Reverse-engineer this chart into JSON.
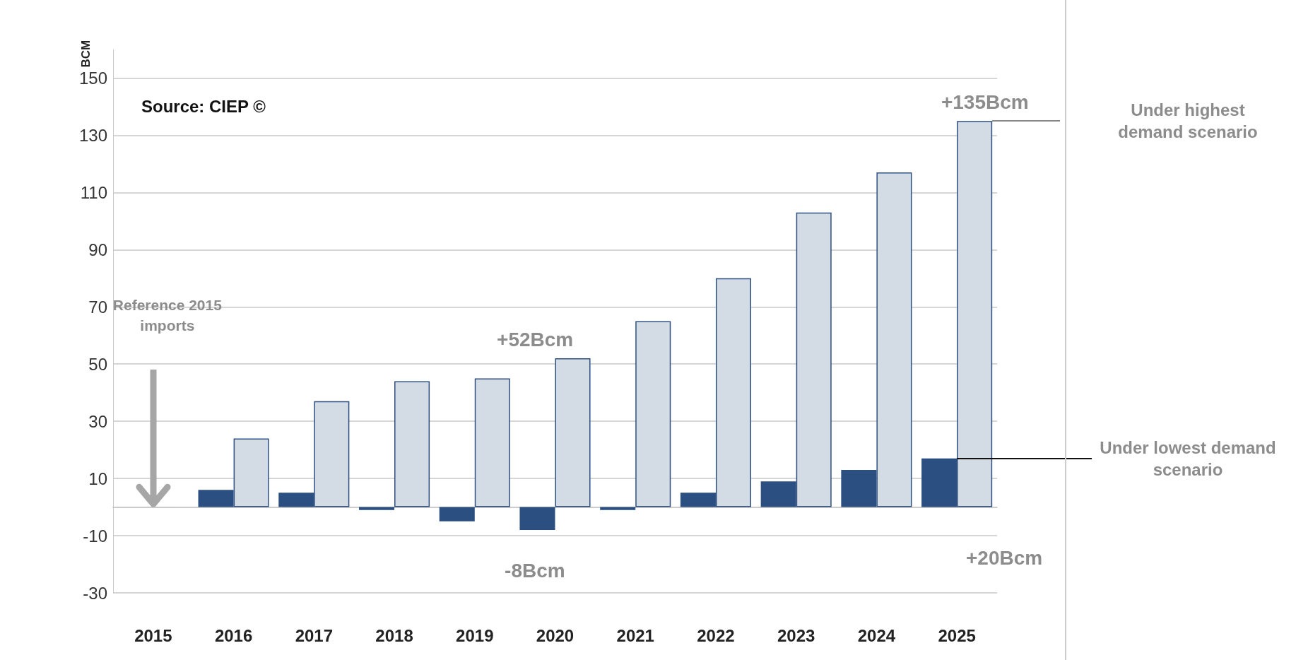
{
  "chart_data": {
    "type": "bar",
    "ylabel": "BCM",
    "categories": [
      "2015",
      "2016",
      "2017",
      "2018",
      "2019",
      "2020",
      "2021",
      "2022",
      "2023",
      "2024",
      "2025"
    ],
    "series": [
      {
        "name": "Under lowest demand scenario",
        "color": "#2b4f80",
        "values": [
          null,
          6,
          5,
          -1,
          -5,
          -8,
          -1,
          5,
          9,
          13,
          17
        ]
      },
      {
        "name": "Under highest demand scenario",
        "color": "#d3dbe5",
        "values": [
          null,
          24,
          37,
          44,
          45,
          52,
          65,
          80,
          103,
          117,
          135
        ]
      }
    ],
    "ylim": [
      -30,
      160
    ],
    "yticks": [
      -30,
      -10,
      10,
      30,
      50,
      70,
      90,
      110,
      130,
      150
    ],
    "grid": "y",
    "legend": false,
    "annotations": [
      "Source: CIEP ©",
      "Reference 2015 imports",
      "+20Bcm",
      {
        "text": "+135Bcm",
        "x": "2025",
        "y": 135
      },
      {
        "text": "+52Bcm",
        "x": "2020",
        "y": 52
      },
      {
        "text": "-8Bcm",
        "x": "2020",
        "y": -8
      }
    ]
  }
}
